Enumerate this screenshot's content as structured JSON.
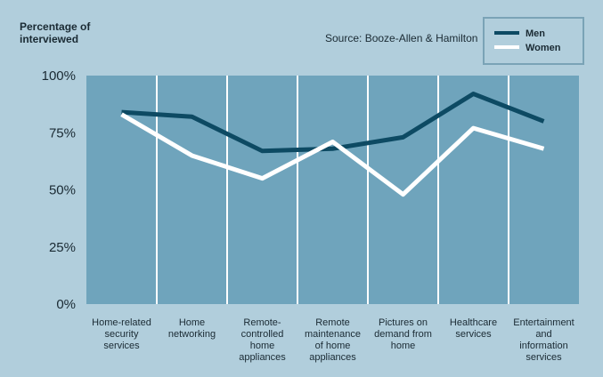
{
  "chart_data": {
    "type": "line",
    "title": "Percentage of\ninterviewed",
    "subtitle": "Source: Booze-Allen & Hamilton",
    "categories": [
      "Home-related\nsecurity\nservices",
      "Home\nnetworking",
      "Remote-\ncontrolled\nhome\nappliances",
      "Remote\nmaintenance\nof home\nappliances",
      "Pictures on\ndemand from\nhome",
      "Healthcare\nservices",
      "Entertainment\nand\ninformation\nservices"
    ],
    "series": [
      {
        "name": "Men",
        "color": "#0d4a63",
        "values": [
          84,
          82,
          67,
          68,
          73,
          92,
          80
        ]
      },
      {
        "name": "Women",
        "color": "#ffffff",
        "values": [
          83,
          65,
          55,
          71,
          48,
          77,
          68
        ]
      }
    ],
    "ylim": [
      0,
      100
    ],
    "yticks": [
      {
        "value": 0,
        "label": "0%"
      },
      {
        "value": 25,
        "label": "25%"
      },
      {
        "value": 50,
        "label": "50%"
      },
      {
        "value": 75,
        "label": "75%"
      },
      {
        "value": 100,
        "label": "100%"
      }
    ],
    "legend": "top-right"
  }
}
